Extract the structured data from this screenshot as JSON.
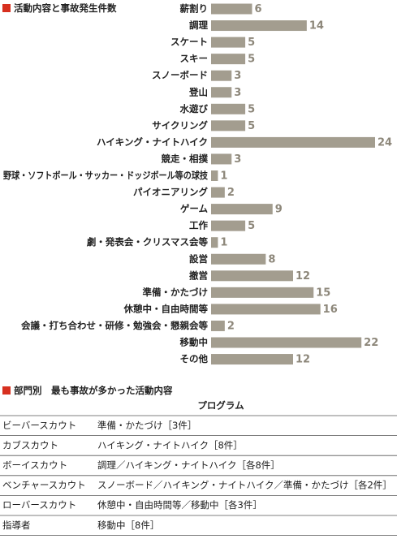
{
  "chart_data": {
    "type": "bar",
    "orientation": "horizontal",
    "title": "活動内容と事故発生件数",
    "categories": [
      "薪割り",
      "調理",
      "スケート",
      "スキー",
      "スノーボード",
      "登山",
      "水遊び",
      "サイクリング",
      "ハイキング・ナイトハイク",
      "競走・相撲",
      "野球・ソフトボール・サッカー・ドッジボール等の球技",
      "パイオニアリング",
      "ゲーム",
      "工作",
      "劇・発表会・クリスマス会等",
      "設営",
      "撤営",
      "準備・かたづけ",
      "休憩中・自由時間等",
      "会議・打ち合わせ・研修・勉強会・懇親会等",
      "移動中",
      "その他"
    ],
    "values": [
      6,
      14,
      5,
      5,
      3,
      3,
      5,
      5,
      24,
      3,
      1,
      2,
      9,
      5,
      1,
      8,
      12,
      15,
      16,
      2,
      22,
      12
    ],
    "color": "#a39d8f"
  },
  "table": {
    "title": "部門別　最も事故が多かった活動内容",
    "header": "プログラム",
    "rows": [
      [
        "ビーバースカウト",
        "準備・かたづけ［3件］"
      ],
      [
        "カブスカウト",
        "ハイキング・ナイトハイク［8件］"
      ],
      [
        "ボーイスカウト",
        "調理／ハイキング・ナイトハイク［各8件］"
      ],
      [
        "ベンチャースカウト",
        "スノーボード／ハイキング・ナイトハイク／準備・かたづけ［各2件］"
      ],
      [
        "ローバースカウト",
        "休憩中・自由時間等／移動中［各3件］"
      ],
      [
        "指導者",
        "移動中［8件］"
      ]
    ]
  }
}
